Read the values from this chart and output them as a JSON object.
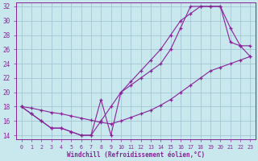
{
  "xlabel": "Windchill (Refroidissement éolien,°C)",
  "xlim": [
    -0.5,
    23.5
  ],
  "ylim": [
    13.5,
    32.5
  ],
  "xticks": [
    0,
    1,
    2,
    3,
    4,
    5,
    6,
    7,
    8,
    9,
    10,
    11,
    12,
    13,
    14,
    15,
    16,
    17,
    18,
    19,
    20,
    21,
    22,
    23
  ],
  "yticks": [
    14,
    16,
    18,
    20,
    22,
    24,
    26,
    28,
    30,
    32
  ],
  "bg_color": "#c8e8ee",
  "grid_color": "#9fbfcf",
  "line_color": "#882299",
  "line1_x": [
    0,
    1,
    2,
    3,
    4,
    5,
    6,
    7,
    8,
    9,
    10,
    11,
    12,
    13,
    14,
    15,
    16,
    17,
    18,
    19,
    20,
    21,
    22,
    23
  ],
  "line1_y": [
    18,
    17,
    16,
    15,
    15,
    14.5,
    14,
    14,
    19,
    14,
    20,
    21,
    22,
    23,
    24,
    26,
    29,
    32,
    32,
    32,
    32,
    27,
    26.5,
    25
  ],
  "line2_x": [
    0,
    1,
    2,
    3,
    4,
    5,
    6,
    7,
    8,
    9,
    10,
    11,
    12,
    13,
    14,
    15,
    16,
    17,
    18,
    19,
    20,
    21,
    22,
    23
  ],
  "line2_y": [
    18,
    17,
    16,
    15,
    15,
    14.5,
    14,
    14,
    16,
    18,
    20,
    21.5,
    23,
    24.5,
    26,
    28,
    30,
    31,
    32,
    32,
    32,
    29,
    26.5,
    26.5
  ],
  "line3_x": [
    0,
    1,
    2,
    3,
    4,
    5,
    6,
    7,
    8,
    9,
    10,
    11,
    12,
    13,
    14,
    15,
    16,
    17,
    18,
    19,
    20,
    21,
    22,
    23
  ],
  "line3_y": [
    18,
    17.8,
    17.5,
    17.2,
    17.0,
    16.7,
    16.4,
    16.1,
    15.8,
    15.6,
    16.0,
    16.5,
    17.0,
    17.5,
    18.2,
    19.0,
    20.0,
    21.0,
    22.0,
    23.0,
    23.5,
    24.0,
    24.5,
    25.0
  ]
}
